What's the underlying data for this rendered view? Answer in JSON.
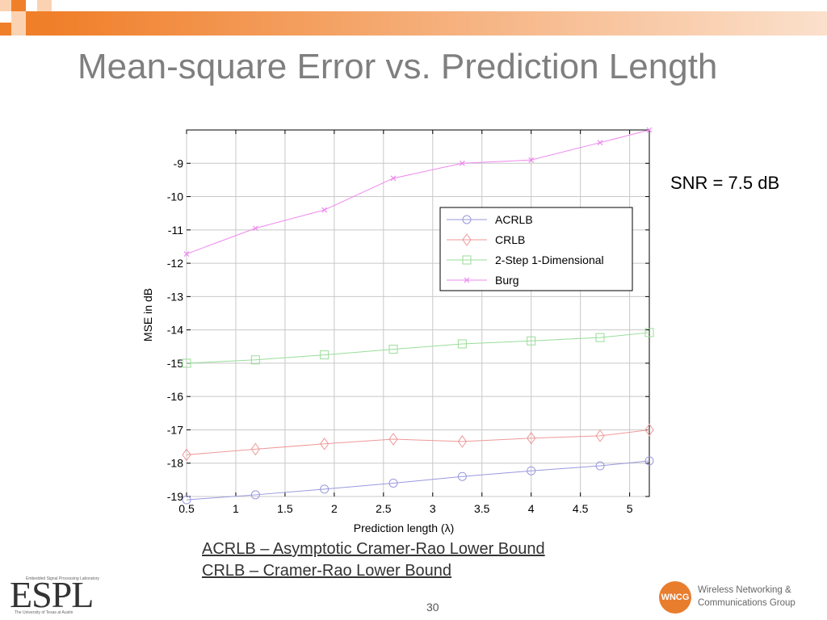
{
  "slide": {
    "title": "Mean-square Error vs. Prediction Length",
    "snr_label": "SNR = 7.5 dB",
    "definitions": [
      "ACRLB – Asymptotic Cramer-Rao Lower Bound",
      "CRLB – Cramer-Rao Lower Bound"
    ],
    "page_number": "30",
    "accent_color": "#f07f2a"
  },
  "logos": {
    "left": {
      "text": "ESPL",
      "tagline": "Embedded Signal Processing Laboratory",
      "university": "The University of Texas at Austin"
    },
    "right": {
      "badge": "WNCG",
      "line1": "Wireless Networking &",
      "line2": "Communications Group"
    }
  },
  "chart_data": {
    "type": "line",
    "title": "",
    "xlabel": "Prediction length (λ)",
    "ylabel": "MSE in dB",
    "xlim": [
      0.5,
      5.2
    ],
    "ylim": [
      -19,
      -8
    ],
    "xticks": [
      0.5,
      1,
      1.5,
      2,
      2.5,
      3,
      3.5,
      4,
      4.5,
      5
    ],
    "yticks": [
      -9,
      -10,
      -11,
      -12,
      -13,
      -14,
      -15,
      -16,
      -17,
      -18,
      -19
    ],
    "grid": true,
    "legend": "top-right",
    "x": [
      0.5,
      1.2,
      1.9,
      2.6,
      3.3,
      4.0,
      4.7,
      5.2
    ],
    "series": [
      {
        "name": "ACRLB",
        "marker": "circle",
        "color": "#9999dd",
        "values": [
          -19.1,
          -18.95,
          -18.78,
          -18.6,
          -18.4,
          -18.23,
          -18.08,
          -17.93
        ]
      },
      {
        "name": "CRLB",
        "marker": "diamond",
        "color": "#ee9999",
        "values": [
          -17.75,
          -17.58,
          -17.42,
          -17.28,
          -17.35,
          -17.25,
          -17.18,
          -17.0
        ]
      },
      {
        "name": "2-Step 1-Dimensional",
        "marker": "square",
        "color": "#99dd99",
        "values": [
          -15.0,
          -14.9,
          -14.75,
          -14.58,
          -14.42,
          -14.33,
          -14.23,
          -14.08
        ]
      },
      {
        "name": "Burg",
        "marker": "x",
        "color": "#ee88ee",
        "values": [
          -11.72,
          -10.95,
          -10.4,
          -9.45,
          -9.0,
          -8.9,
          -8.38,
          -8.0
        ]
      }
    ]
  }
}
